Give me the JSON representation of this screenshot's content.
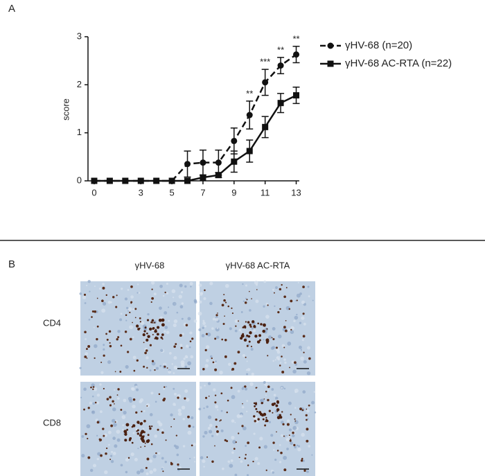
{
  "chart_data": {
    "type": "line",
    "ylabel": "score",
    "x": [
      0,
      1,
      2,
      3,
      4,
      5,
      6,
      7,
      8,
      9,
      10,
      11,
      12,
      13
    ],
    "xlim": [
      -0.4,
      13.2
    ],
    "xticks": [
      0,
      3,
      5,
      7,
      9,
      11,
      13
    ],
    "ylim": [
      0,
      3
    ],
    "yticks": [
      0,
      1,
      2,
      3
    ],
    "series": [
      {
        "name": "γHV-68 (n=20)",
        "color": "#111111",
        "dash": true,
        "marker": "circle",
        "values": [
          0,
          0,
          0,
          0,
          0,
          0,
          0.35,
          0.38,
          0.38,
          0.83,
          1.37,
          2.05,
          2.4,
          2.63
        ],
        "errors": [
          null,
          null,
          null,
          null,
          null,
          null,
          0.27,
          0.26,
          0.26,
          0.27,
          0.29,
          0.27,
          0.17,
          0.17
        ]
      },
      {
        "name": "γHV-68 AC-RTA (n=22)",
        "color": "#111111",
        "dash": false,
        "marker": "square",
        "values": [
          0,
          0,
          0,
          0,
          0,
          0,
          0,
          0.07,
          0.12,
          0.4,
          0.62,
          1.12,
          1.62,
          1.78
        ],
        "errors": [
          null,
          null,
          null,
          null,
          null,
          null,
          null,
          null,
          0.05,
          0.22,
          0.23,
          0.22,
          0.2,
          0.17
        ]
      }
    ],
    "annotations": [
      {
        "x": 10,
        "text": "**"
      },
      {
        "x": 11,
        "text": "***"
      },
      {
        "x": 12,
        "text": "**"
      },
      {
        "x": 13,
        "text": "**"
      }
    ]
  },
  "figure": {
    "panel_a_label": "A",
    "panel_b_label": "B",
    "columns": [
      "γHV-68",
      "γHV-68 AC-RTA"
    ],
    "rows": [
      "CD4",
      "CD8"
    ]
  }
}
